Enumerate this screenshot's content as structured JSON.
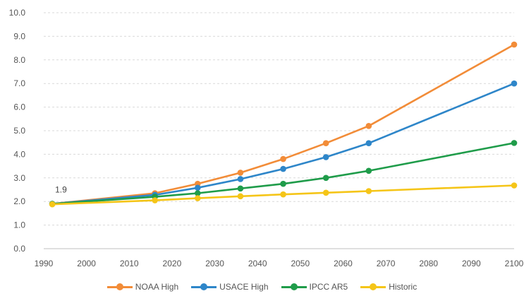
{
  "chart_data": {
    "type": "line",
    "title": "",
    "xlabel": "",
    "ylabel": "",
    "xlim": [
      1990,
      2100
    ],
    "ylim": [
      0,
      10
    ],
    "x_ticks": [
      1990,
      2000,
      2010,
      2020,
      2030,
      2040,
      2050,
      2060,
      2070,
      2080,
      2090,
      2100
    ],
    "y_ticks": [
      "0.0",
      "1.0",
      "2.0",
      "3.0",
      "4.0",
      "5.0",
      "6.0",
      "7.0",
      "8.0",
      "9.0",
      "10.0"
    ],
    "grid": "horizontal",
    "legend_position": "bottom",
    "annotations": [
      {
        "text": "1.9",
        "x": 1992,
        "y": 1.9
      }
    ],
    "series": [
      {
        "name": "NOAA High",
        "color": "#f28c38",
        "x": [
          1992,
          2016,
          2026,
          2036,
          2046,
          2056,
          2066,
          2100
        ],
        "y": [
          1.9,
          2.35,
          2.75,
          3.22,
          3.8,
          4.47,
          5.2,
          8.65
        ]
      },
      {
        "name": "USACE High",
        "color": "#2e86c9",
        "x": [
          1992,
          2016,
          2026,
          2036,
          2046,
          2056,
          2066,
          2100
        ],
        "y": [
          1.9,
          2.28,
          2.58,
          2.95,
          3.38,
          3.88,
          4.47,
          7.0
        ]
      },
      {
        "name": "IPCC AR5",
        "color": "#1f9c4a",
        "x": [
          1992,
          2016,
          2026,
          2036,
          2046,
          2056,
          2066,
          2100
        ],
        "y": [
          1.9,
          2.2,
          2.35,
          2.55,
          2.75,
          3.0,
          3.3,
          4.48
        ]
      },
      {
        "name": "Historic",
        "color": "#f5c518",
        "x": [
          1992,
          2016,
          2026,
          2036,
          2046,
          2056,
          2066,
          2100
        ],
        "y": [
          1.88,
          2.05,
          2.14,
          2.22,
          2.3,
          2.37,
          2.44,
          2.68
        ]
      }
    ]
  }
}
